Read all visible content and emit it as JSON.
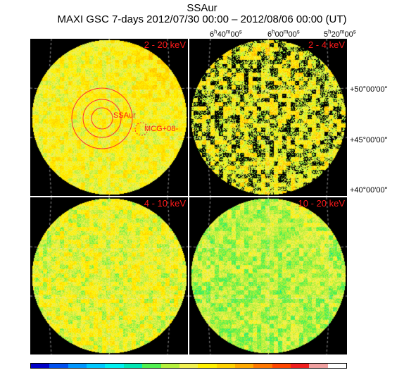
{
  "header": {
    "source_name": "SSAur",
    "subtitle": "MAXI GSC 7-days 2012/07/30 00:00 – 2012/08/06 00:00 (UT)"
  },
  "axes": {
    "ra_labels": [
      "6h40m00s",
      "6h00m00s",
      "5h20m00s"
    ],
    "dec_labels": [
      "+50°00'00\"",
      "+45°00'00\"",
      "+40°00'00\""
    ]
  },
  "panels": [
    {
      "band": "2 - 20 keV",
      "palette_level": "high"
    },
    {
      "band": "2 - 4 keV",
      "palette_level": "low"
    },
    {
      "band": "4 - 10 keV",
      "palette_level": "mid"
    },
    {
      "band": "10 - 20 keV",
      "palette_level": "mid"
    }
  ],
  "annotations": {
    "target_label": "SSAur",
    "nearby_label": "MCG+08-"
  },
  "colorbar": [
    "#0000c8",
    "#0050f0",
    "#0096ff",
    "#00c8ff",
    "#00f0f0",
    "#00e6b4",
    "#50f050",
    "#b4f03c",
    "#f0f050",
    "#fff000",
    "#ffd200",
    "#ffaa00",
    "#ff7800",
    "#ff4600",
    "#f01e1e",
    "#f0a0a0",
    "#ffffff"
  ]
}
